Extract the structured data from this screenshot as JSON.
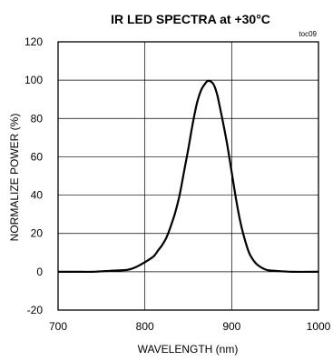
{
  "chart_data": {
    "type": "line",
    "title": "IR LED SPECTRA at +30°C",
    "tag": "toc09",
    "xlabel": "WAVELENGTH (nm)",
    "ylabel": "NORMALIZE POWER (%)",
    "xlim": [
      700,
      1000
    ],
    "ylim": [
      -20,
      120
    ],
    "xticks": [
      700,
      800,
      900,
      1000
    ],
    "yticks": [
      -20,
      0,
      20,
      40,
      60,
      80,
      100,
      120
    ],
    "vgrid": [
      800,
      900
    ],
    "hgrid": [
      0,
      20,
      40,
      60,
      80,
      100
    ],
    "series": [
      {
        "color": "#000000",
        "x": [
          700,
          720,
          740,
          760,
          780,
          790,
          800,
          810,
          815,
          820,
          825,
          830,
          835,
          840,
          845,
          850,
          855,
          860,
          865,
          870,
          872,
          875,
          878,
          880,
          883,
          885,
          890,
          895,
          900,
          905,
          910,
          915,
          920,
          925,
          930,
          940,
          950,
          970,
          1000
        ],
        "y": [
          0,
          0,
          0,
          0.5,
          1,
          2.5,
          5,
          8,
          11,
          14,
          18,
          24,
          31,
          40,
          52,
          64,
          77,
          88,
          95,
          98.5,
          99.5,
          99.5,
          98.5,
          97,
          93,
          89,
          78,
          66,
          52,
          38,
          26,
          17,
          10,
          6,
          3.5,
          1,
          0.5,
          0,
          0
        ]
      }
    ]
  }
}
